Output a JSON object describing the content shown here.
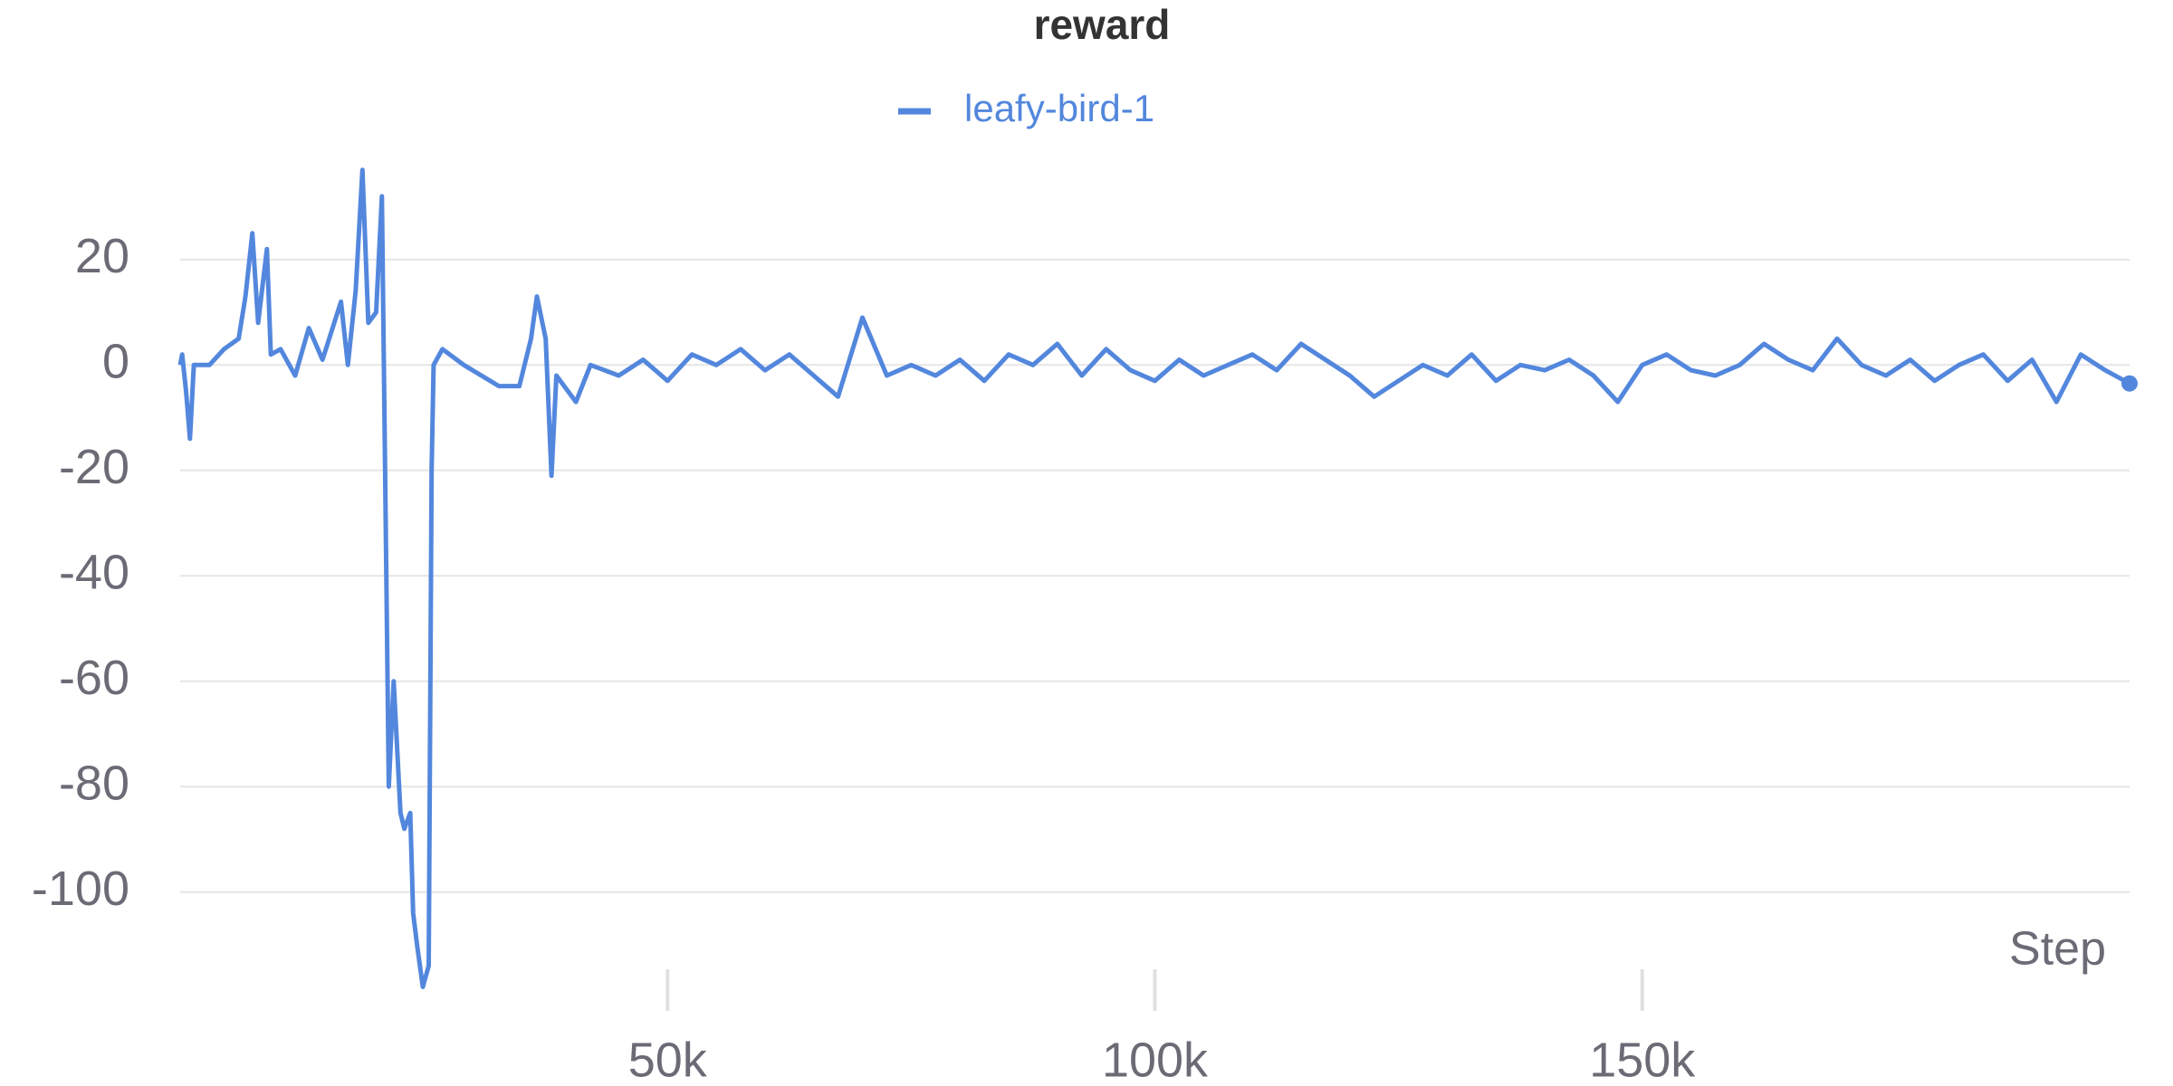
{
  "chart_data": {
    "type": "line",
    "title": "reward",
    "xlabel": "Step",
    "xlim": [
      0,
      200000
    ],
    "ylim": [
      -121,
      38
    ],
    "xticks": [
      {
        "value": 50000,
        "label": "50k"
      },
      {
        "value": 100000,
        "label": "100k"
      },
      {
        "value": 150000,
        "label": "150k"
      }
    ],
    "yticks": [
      -100,
      -80,
      -60,
      -40,
      -20,
      0,
      20
    ],
    "grid": true,
    "legend": "top",
    "x": [
      0,
      200,
      600,
      1000,
      1400,
      3000,
      4500,
      6000,
      6700,
      7400,
      8000,
      8900,
      9300,
      10300,
      11800,
      13200,
      14600,
      16500,
      17200,
      18000,
      18700,
      19300,
      20100,
      20700,
      21400,
      21900,
      22600,
      23000,
      23600,
      23900,
      24300,
      24900,
      25500,
      25800,
      26000,
      26900,
      29100,
      32700,
      34800,
      36000,
      36600,
      37500,
      38100,
      38600,
      40600,
      42100,
      45000,
      47500,
      50000,
      52500,
      55000,
      57500,
      60000,
      62500,
      65000,
      67500,
      70000,
      72500,
      75000,
      77500,
      80000,
      82500,
      85000,
      87500,
      90000,
      92500,
      95000,
      97500,
      100000,
      102500,
      105000,
      107500,
      110000,
      112500,
      115000,
      117500,
      120000,
      122500,
      125000,
      127500,
      130000,
      132500,
      135000,
      137500,
      140000,
      142500,
      145000,
      147500,
      150000,
      152500,
      155000,
      157500,
      160000,
      162500,
      165000,
      167500,
      170000,
      172500,
      175000,
      177500,
      180000,
      182500,
      185000,
      187500,
      190000,
      192500,
      195000,
      197500,
      200000
    ],
    "series": [
      {
        "name": "leafy-bird-1",
        "color": "#5387dd",
        "values": [
          0,
          2,
          -5,
          -14,
          0,
          0,
          3,
          5,
          13,
          25,
          8,
          22,
          2,
          3,
          -2,
          7,
          1,
          12,
          0,
          14,
          37,
          8,
          10,
          32,
          -80,
          -60,
          -85,
          -88,
          -85,
          -104,
          -110,
          -118,
          -114,
          -20,
          0,
          3,
          0,
          -4,
          -4,
          5,
          13,
          5,
          -21,
          -2,
          -7,
          0,
          -2,
          1,
          -3,
          2,
          0,
          3,
          -1,
          2,
          -2,
          -6,
          9,
          -2,
          0,
          -2,
          1,
          -3,
          2,
          0,
          4,
          -2,
          3,
          -1,
          -3,
          1,
          -2,
          0,
          2,
          -1,
          4,
          1,
          -2,
          -6,
          -3,
          0,
          -2,
          2,
          -3,
          0,
          -1,
          1,
          -2,
          -7,
          0,
          2,
          -1,
          -2,
          0,
          4,
          1,
          -1,
          5,
          0,
          -2,
          1,
          -3,
          0,
          2,
          -3,
          1,
          -7,
          2,
          -1,
          -3.5
        ]
      }
    ]
  }
}
